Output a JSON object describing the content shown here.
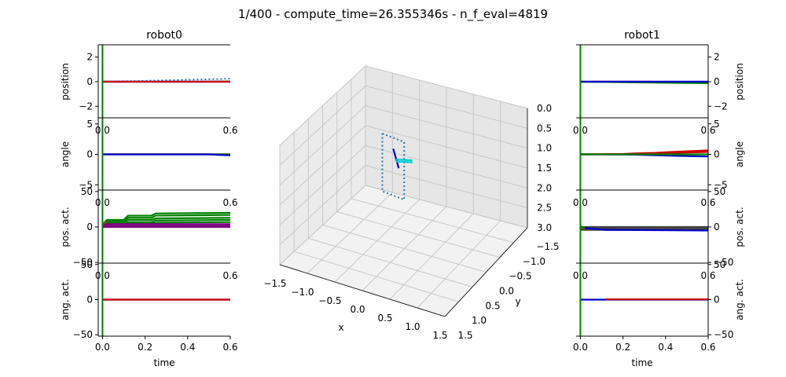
{
  "figure": {
    "suptitle": "1/400 - compute_time=26.355346s - n_f_eval=4819"
  },
  "chart_data": [
    {
      "type": "line",
      "name": "robot0",
      "title": "robot0",
      "xlabel": "time",
      "xlim": [
        -0.02,
        0.6
      ],
      "xticks": [
        "0.0",
        "0.2",
        "0.4",
        "0.6"
      ],
      "cursor_x": 0.0,
      "cursor_color": "#008000",
      "panels": [
        {
          "ylabel": "position",
          "ylim": [
            -3,
            3
          ],
          "yticks": [
            "−2",
            "0",
            "2"
          ],
          "series": [
            {
              "color": "#1f77b4",
              "dotted": true,
              "x": [
                0,
                0.1,
                0.2,
                0.3,
                0.4,
                0.5,
                0.6
              ],
              "y": [
                0,
                0.03,
                0.07,
                0.11,
                0.16,
                0.2,
                0.25
              ]
            },
            {
              "color": "#008000",
              "x": [
                0,
                0.45,
                0.6
              ],
              "y": [
                0,
                0,
                0.02
              ]
            },
            {
              "color": "#0000cd",
              "x": [
                0,
                0.6
              ],
              "y": [
                0,
                0
              ]
            },
            {
              "color": "#d00000",
              "x": [
                0,
                0.6
              ],
              "y": [
                0,
                0
              ]
            }
          ]
        },
        {
          "ylabel": "angle",
          "ylim": [
            -6,
            6
          ],
          "yticks": [
            "−5",
            "0",
            "5"
          ],
          "series": [
            {
              "color": "#d00000",
              "x": [
                0,
                0.6
              ],
              "y": [
                0,
                0
              ]
            },
            {
              "color": "#008000",
              "x": [
                0,
                0.6
              ],
              "y": [
                0,
                0
              ]
            },
            {
              "color": "#0000cd",
              "x": [
                0,
                0.5,
                0.55,
                0.6
              ],
              "y": [
                0,
                0,
                -0.1,
                -0.15
              ]
            }
          ]
        },
        {
          "ylabel": "pos. act.",
          "ylim": [
            -52,
            52
          ],
          "yticks": [
            "−50",
            "0",
            "50"
          ],
          "series": [
            {
              "color": "#008000",
              "x": [
                0,
                0.02,
                0.1,
                0.12,
                0.23,
                0.25,
                0.6
              ],
              "y": [
                3,
                10,
                10,
                16,
                16,
                19,
                20
              ]
            },
            {
              "color": "#008000",
              "x": [
                0,
                0.02,
                0.1,
                0.12,
                0.23,
                0.25,
                0.6
              ],
              "y": [
                2,
                8,
                8,
                13,
                13,
                16,
                17
              ]
            },
            {
              "color": "#008000",
              "x": [
                0,
                0.02,
                0.1,
                0.12,
                0.23,
                0.25,
                0.6
              ],
              "y": [
                1,
                6,
                6,
                10,
                10,
                12,
                13
              ]
            },
            {
              "color": "#008000",
              "x": [
                0,
                0.02,
                0.1,
                0.12,
                0.23,
                0.25,
                0.6
              ],
              "y": [
                1,
                4,
                4,
                7,
                7,
                9,
                10
              ]
            },
            {
              "color": "#008000",
              "x": [
                0,
                0.02,
                0.1,
                0.12,
                0.23,
                0.25,
                0.6
              ],
              "y": [
                0,
                3,
                3,
                5,
                5,
                6,
                7
              ]
            },
            {
              "color": "#800080",
              "x": [
                0,
                0.6
              ],
              "y": [
                4,
                4
              ]
            },
            {
              "color": "#800080",
              "x": [
                0,
                0.6
              ],
              "y": [
                2,
                2
              ]
            },
            {
              "color": "#800080",
              "x": [
                0,
                0.6
              ],
              "y": [
                0,
                0
              ]
            },
            {
              "color": "#8b4513",
              "x": [
                0,
                0.02
              ],
              "y": [
                3,
                8
              ]
            }
          ]
        },
        {
          "ylabel": "ang. act.",
          "ylim": [
            -52,
            52
          ],
          "yticks": [
            "−50",
            "0",
            "50"
          ],
          "series": [
            {
              "color": "#0000cd",
              "x": [
                0,
                0.6
              ],
              "y": [
                0,
                0
              ]
            },
            {
              "color": "#d00000",
              "x": [
                0,
                0.6
              ],
              "y": [
                0,
                0
              ]
            }
          ]
        }
      ]
    },
    {
      "type": "line",
      "name": "robot1",
      "title": "robot1",
      "xlabel": "time",
      "xlim": [
        -0.02,
        0.6
      ],
      "xticks": [
        "0.0",
        "0.2",
        "0.4",
        "0.6"
      ],
      "cursor_x": 0.0,
      "cursor_color": "#008000",
      "panels": [
        {
          "ylabel": "position",
          "ylim": [
            -3,
            3
          ],
          "yticks": [
            "−2",
            "0",
            "2"
          ],
          "series": [
            {
              "color": "#d00000",
              "x": [
                0,
                0.33,
                0.35,
                0.6
              ],
              "y": [
                0,
                0,
                -0.05,
                -0.08
              ]
            },
            {
              "color": "#800080",
              "x": [
                0,
                0.6
              ],
              "y": [
                0,
                0
              ]
            },
            {
              "color": "#008000",
              "x": [
                0,
                0.45,
                0.6
              ],
              "y": [
                0,
                -0.1,
                -0.12
              ]
            },
            {
              "color": "#0000cd",
              "x": [
                0,
                0.6
              ],
              "y": [
                0,
                0
              ]
            }
          ]
        },
        {
          "ylabel": "angle",
          "ylim": [
            -6,
            6
          ],
          "yticks": [
            "−5",
            "0",
            "5"
          ],
          "series": [
            {
              "color": "#d00000",
              "x": [
                0,
                0.2,
                0.25,
                0.35,
                0.4,
                0.5,
                0.6
              ],
              "y": [
                0,
                0.05,
                0.15,
                0.25,
                0.35,
                0.5,
                0.65
              ]
            },
            {
              "color": "#d00000",
              "x": [
                0,
                0.25,
                0.35,
                0.5,
                0.6
              ],
              "y": [
                0,
                0.05,
                0.15,
                0.3,
                0.4
              ]
            },
            {
              "color": "#0000cd",
              "x": [
                0,
                0.25,
                0.35,
                0.45,
                0.6
              ],
              "y": [
                0,
                -0.05,
                -0.15,
                -0.25,
                -0.35
              ]
            },
            {
              "color": "#008000",
              "x": [
                0,
                0.6
              ],
              "y": [
                0,
                0
              ]
            }
          ]
        },
        {
          "ylabel": "pos. act.",
          "ylim": [
            -52,
            52
          ],
          "yticks": [
            "−50",
            "0",
            "50"
          ],
          "series": [
            {
              "color": "#444444",
              "x": [
                0,
                0.6
              ],
              "y": [
                0,
                0
              ]
            },
            {
              "color": "#444444",
              "x": [
                0,
                0.6
              ],
              "y": [
                -2,
                -2
              ]
            },
            {
              "color": "#444444",
              "x": [
                0,
                0.6
              ],
              "y": [
                -4,
                -4
              ]
            },
            {
              "color": "#0000cd",
              "x": [
                0,
                0.12,
                0.6
              ],
              "y": [
                -1,
                -4,
                -5
              ]
            },
            {
              "color": "#8b4513",
              "x": [
                0,
                0.02
              ],
              "y": [
                0,
                -3
              ]
            },
            {
              "color": "#008000",
              "x": [
                0,
                0.02
              ],
              "y": [
                1,
                -1
              ]
            }
          ]
        },
        {
          "ylabel": "ang. act.",
          "ylim": [
            -52,
            52
          ],
          "yticks": [
            "−50",
            "0",
            "50"
          ],
          "series": [
            {
              "color": "#0000cd",
              "x": [
                0,
                0.6
              ],
              "y": [
                0,
                0
              ]
            },
            {
              "color": "#d00000",
              "x": [
                0.12,
                0.6
              ],
              "y": [
                0.5,
                0.5
              ]
            }
          ]
        }
      ]
    },
    {
      "type": "scatter",
      "name": "3d-scene",
      "projection": "3d",
      "xlabel": "x",
      "ylabel": "y",
      "zlabel": "",
      "xlim": [
        -1.5,
        1.5
      ],
      "ylim": [
        -1.5,
        1.5
      ],
      "zlim": [
        3.0,
        0.0
      ],
      "xticks": [
        "−1.5",
        "−1.0",
        "−0.5",
        "0.0",
        "0.5",
        "1.0",
        "1.5"
      ],
      "yticks": [
        "−1.5",
        "−1.0",
        "−0.5",
        "0.0",
        "0.5",
        "1.0",
        "1.5"
      ],
      "zticks": [
        "0.0",
        "0.5",
        "1.0",
        "1.5",
        "2.0",
        "2.5",
        "3.0"
      ],
      "grid": true,
      "series": [
        {
          "color": "#1f77b4",
          "dotted": true,
          "kind": "line3d",
          "points": [
            [
              -0.25,
              0.3,
              0.0
            ],
            [
              0.15,
              0.3,
              0.05
            ],
            [
              0.15,
              0.3,
              1.5
            ],
            [
              -0.25,
              0.3,
              1.45
            ],
            [
              -0.25,
              0.3,
              0.0
            ]
          ]
        },
        {
          "color": "#0000cd",
          "kind": "line3d",
          "points": [
            [
              -0.05,
              0.3,
              0.3
            ],
            [
              0.05,
              0.3,
              0.75
            ]
          ]
        },
        {
          "color": "#00ced1",
          "kind": "line3d",
          "points": [
            [
              0.0,
              0.3,
              0.55
            ],
            [
              0.3,
              0.3,
              0.45
            ]
          ]
        },
        {
          "color": "#00ced1",
          "kind": "line3d",
          "points": [
            [
              0.0,
              0.3,
              0.6
            ],
            [
              0.3,
              0.3,
              0.5
            ]
          ]
        }
      ]
    }
  ]
}
